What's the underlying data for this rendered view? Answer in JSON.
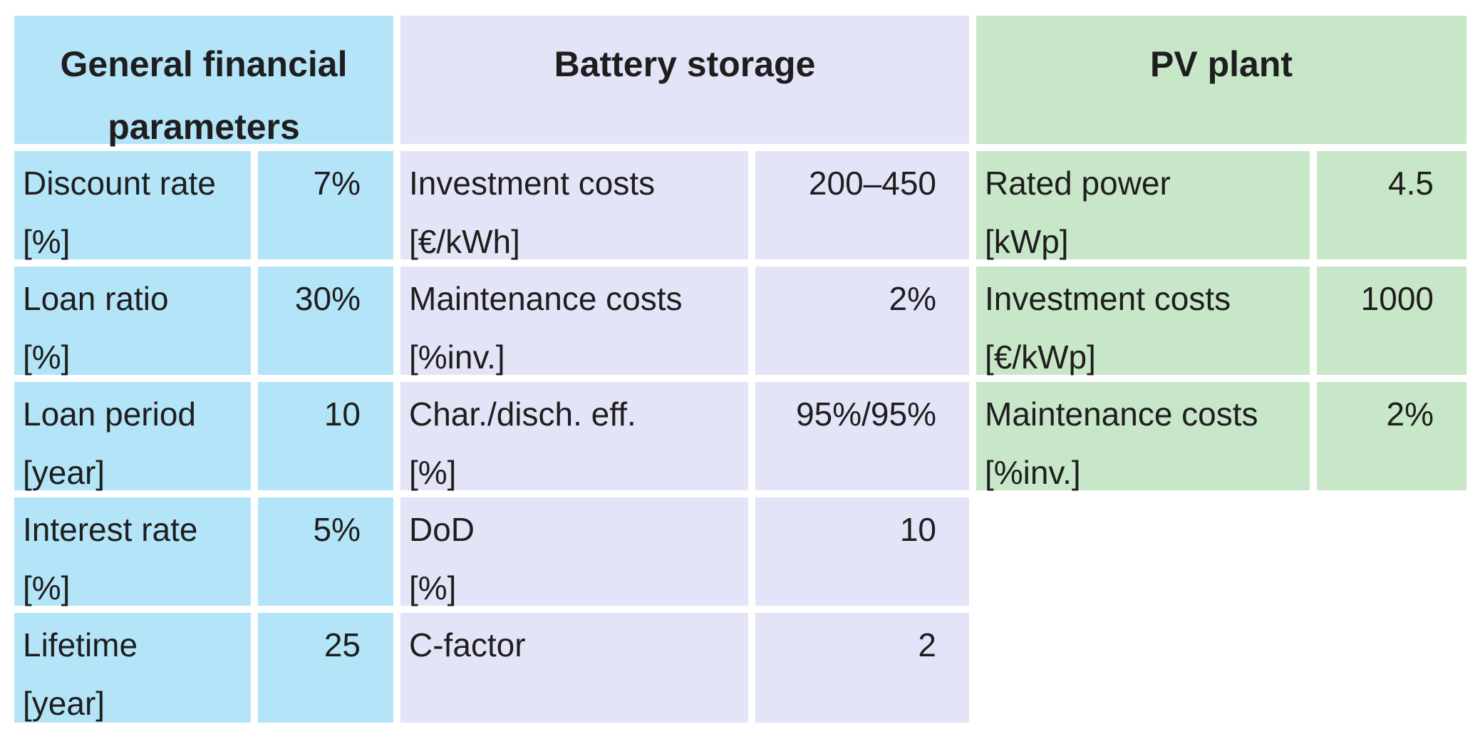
{
  "headers": {
    "financial": "General financial parameters",
    "battery": "Battery storage",
    "pv": "PV plant"
  },
  "colors": {
    "financial_bg": "#b4e4f8",
    "battery_bg": "#e4e4f8",
    "pv_bg": "#c8e6c8"
  },
  "financial": [
    {
      "name": "Discount rate",
      "unit": "[%]",
      "value": "7%"
    },
    {
      "name": "Loan ratio",
      "unit": "[%]",
      "value": "30%"
    },
    {
      "name": "Loan period",
      "unit": "[year]",
      "value": "10"
    },
    {
      "name": "Interest rate",
      "unit": "[%]",
      "value": "5%"
    },
    {
      "name": "Lifetime",
      "unit": "[year]",
      "value": "25"
    }
  ],
  "battery": [
    {
      "name": "Investment costs",
      "unit": "[€/kWh]",
      "value": "200–450"
    },
    {
      "name": "Maintenance costs",
      "unit": "[%inv.]",
      "value": "2%"
    },
    {
      "name": "Char./disch. eff.",
      "unit": "[%]",
      "value": "95%/95%"
    },
    {
      "name": "DoD",
      "unit": "[%]",
      "value": "10"
    },
    {
      "name": "C-factor",
      "unit": "",
      "value": "2"
    }
  ],
  "pv": [
    {
      "name": "Rated power",
      "unit": "[kWp]",
      "value": "4.5"
    },
    {
      "name": "Investment costs",
      "unit": "[€/kWp]",
      "value": "1000"
    },
    {
      "name": "Maintenance costs",
      "unit": "[%inv.]",
      "value": "2%"
    }
  ]
}
